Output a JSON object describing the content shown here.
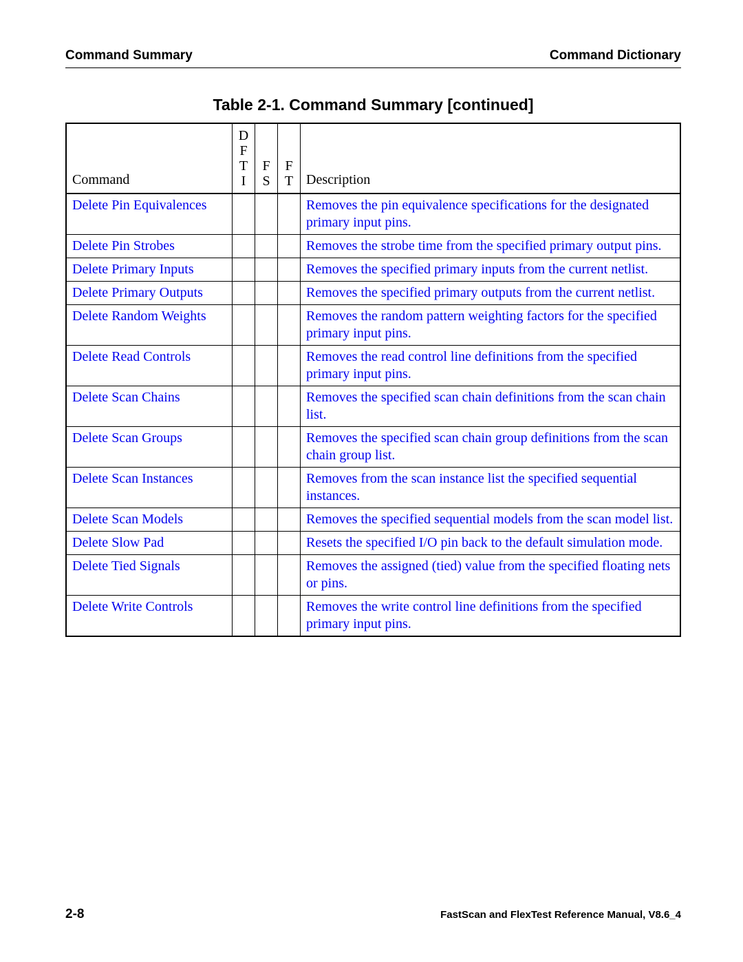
{
  "header": {
    "left": "Command Summary",
    "right": "Command Dictionary"
  },
  "table_title": "Table 2-1. Command Summary [continued]",
  "columns": {
    "command": "Command",
    "dfti": "D\nF\nT\nI",
    "fs": "F\nS",
    "ft": "F\nT",
    "description": "Description"
  },
  "rows": [
    {
      "command": "Delete Pin Equivalences",
      "dfti": "",
      "fs": "",
      "ft": "",
      "description": "Removes the pin equivalence specifications for the designated primary input pins."
    },
    {
      "command": "Delete Pin Strobes",
      "dfti": "",
      "fs": "",
      "ft": "",
      "description": "Removes the strobe time from the specified primary output pins."
    },
    {
      "command": "Delete Primary Inputs",
      "dfti": "",
      "fs": "",
      "ft": "",
      "description": "Removes the specified primary inputs from the current netlist."
    },
    {
      "command": "Delete Primary Outputs",
      "dfti": "",
      "fs": "",
      "ft": "",
      "description": "Removes the specified primary outputs from the current netlist."
    },
    {
      "command": "Delete Random Weights",
      "dfti": "",
      "fs": "",
      "ft": "",
      "description": "Removes the random pattern weighting factors for the specified primary input pins."
    },
    {
      "command": "Delete Read Controls",
      "dfti": "",
      "fs": "",
      "ft": "",
      "description": "Removes the read control line definitions from the specified primary input pins."
    },
    {
      "command": "Delete Scan Chains",
      "dfti": "",
      "fs": "",
      "ft": "",
      "description": "Removes the specified scan chain definitions from the scan chain list."
    },
    {
      "command": "Delete Scan Groups",
      "dfti": "",
      "fs": "",
      "ft": "",
      "description": "Removes the specified scan chain group definitions from the scan chain group list."
    },
    {
      "command": "Delete Scan Instances",
      "dfti": "",
      "fs": "",
      "ft": "",
      "description": "Removes from the scan instance list the specified sequential instances."
    },
    {
      "command": "Delete Scan Models",
      "dfti": "",
      "fs": "",
      "ft": "",
      "description": "Removes the specified sequential models from the scan model list."
    },
    {
      "command": "Delete Slow Pad",
      "dfti": "",
      "fs": "",
      "ft": "",
      "description": "Resets the specified I/O pin back to the default simulation mode."
    },
    {
      "command": "Delete Tied Signals",
      "dfti": "",
      "fs": "",
      "ft": "",
      "description": "Removes the assigned (tied) value from the specified floating nets or pins."
    },
    {
      "command": "Delete Write Controls",
      "dfti": "",
      "fs": "",
      "ft": "",
      "description": "Removes the write control line definitions from the specified primary input pins."
    }
  ],
  "footer": {
    "page": "2-8",
    "manual": "FastScan and FlexTest Reference Manual, V8.6_4"
  },
  "colors": {
    "link": "#0000ee",
    "text": "#000000",
    "background": "#ffffff"
  }
}
